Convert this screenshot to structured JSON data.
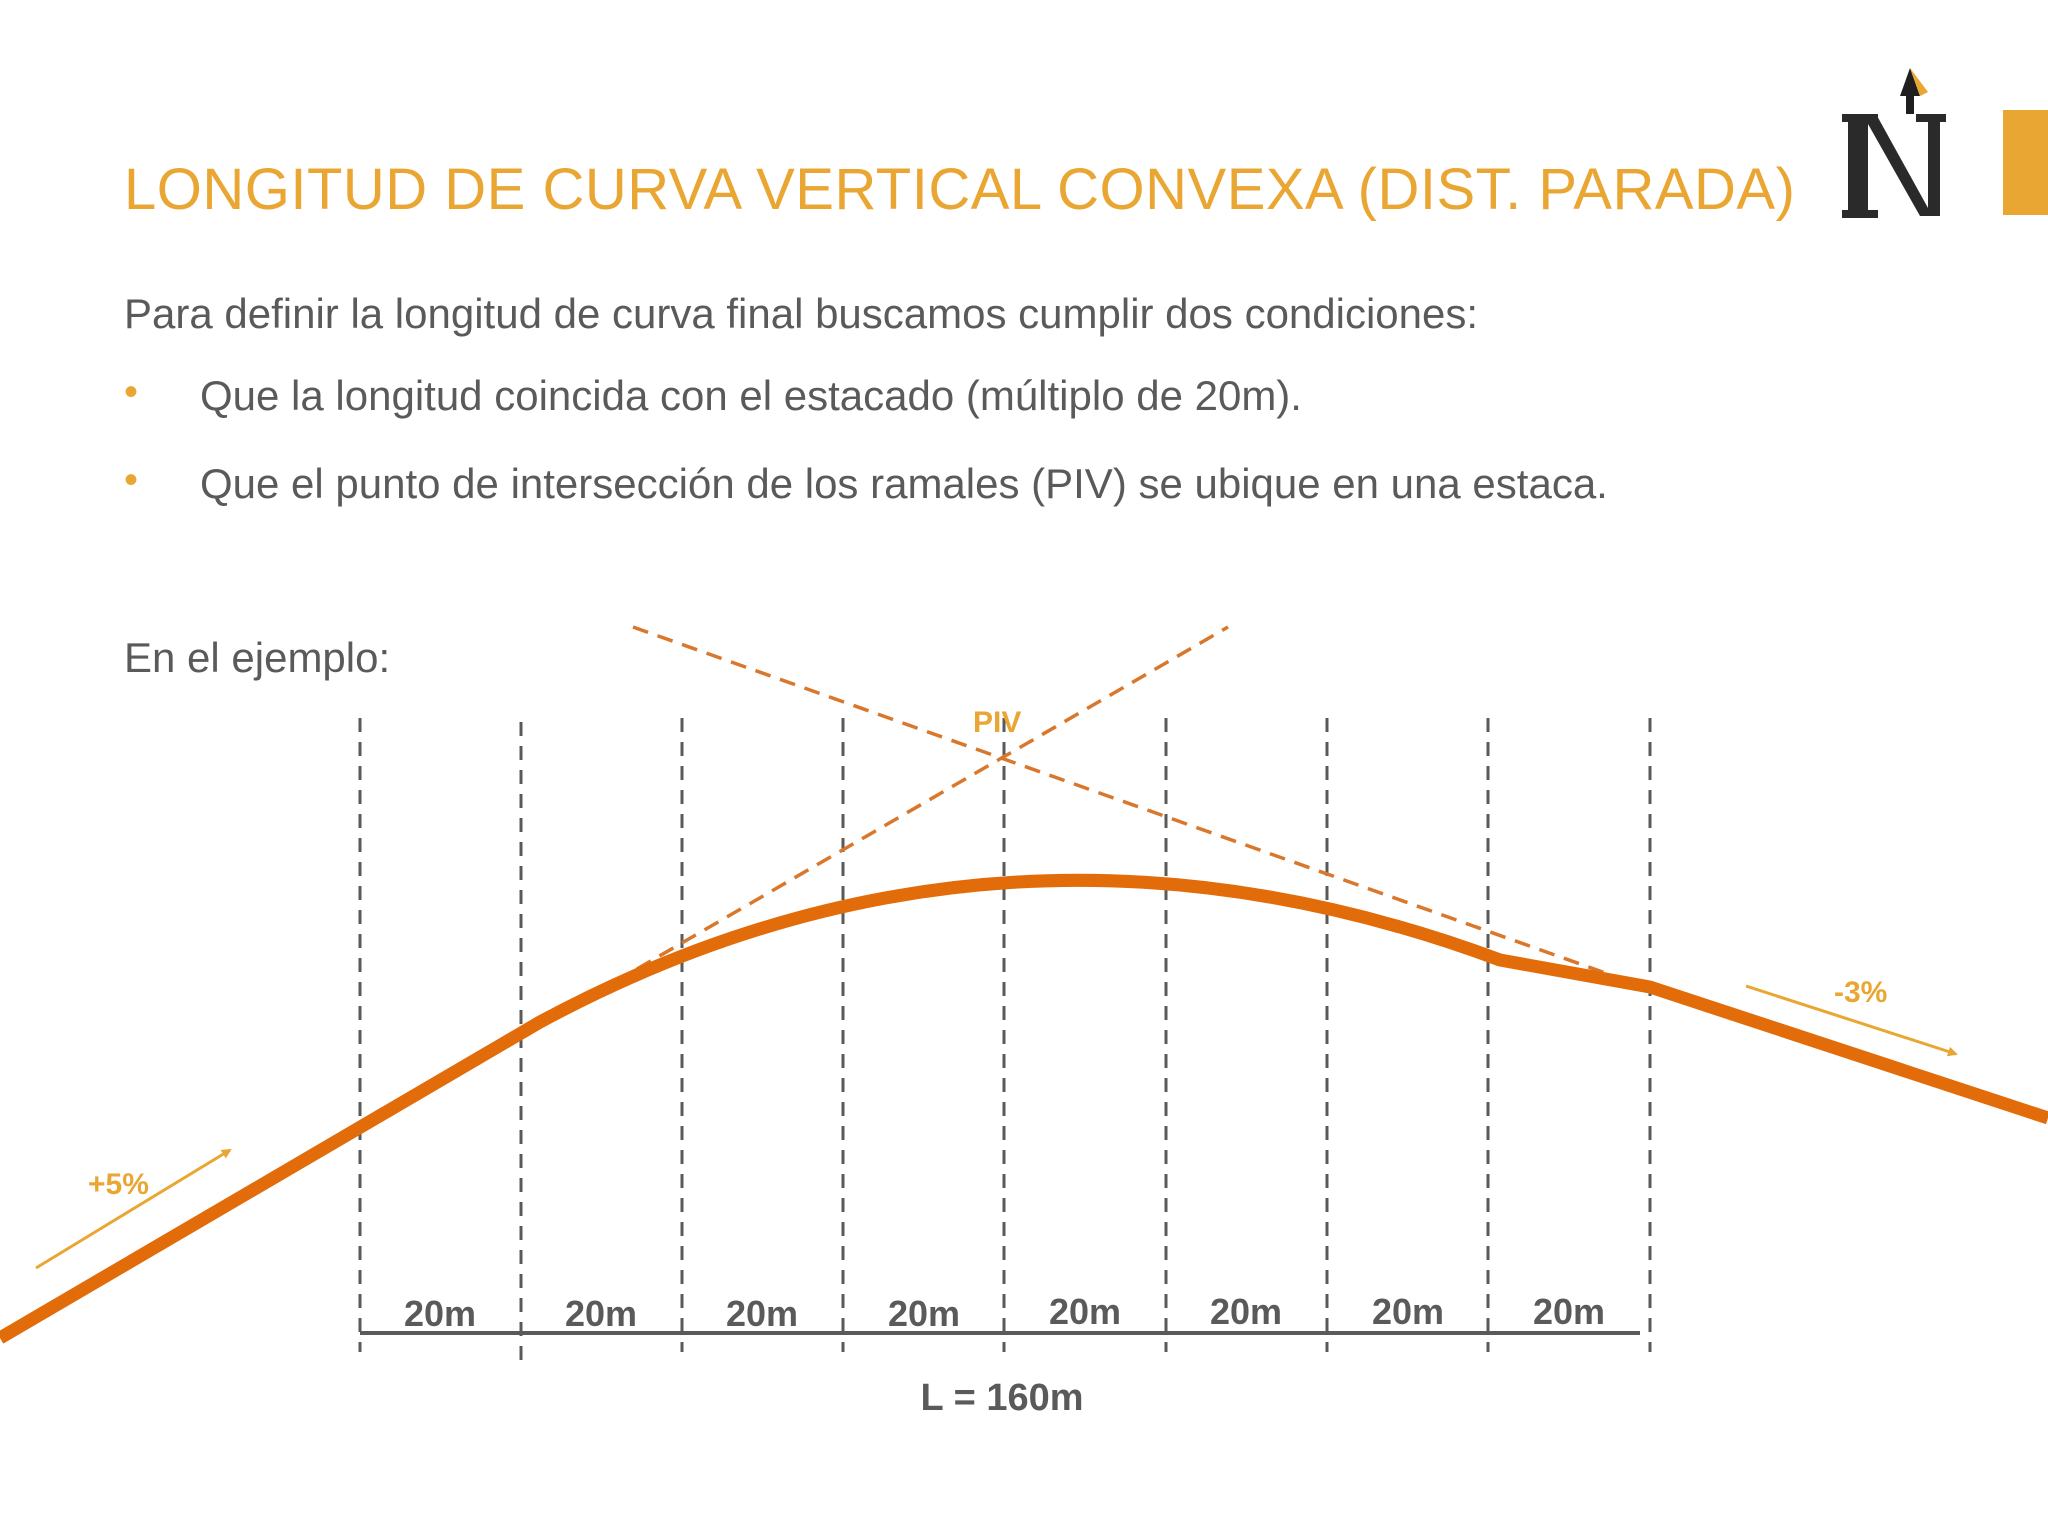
{
  "slide": {
    "title": "LONGITUD DE CURVA VERTICAL CONVEXA (DIST. PARADA)",
    "intro": "Para definir la longitud de curva final buscamos cumplir dos condiciones:",
    "bullets": [
      "Que la longitud coincida con el estacado (múltiplo de 20m).",
      "Que el punto de intersección de los ramales (PIV) se ubique en una estaca."
    ],
    "example_label": "En el ejemplo:"
  },
  "diagram": {
    "piv_label": "PIV",
    "grade_in": "+5%",
    "grade_out": "-3%",
    "segment_labels": [
      "20m",
      "20m",
      "20m",
      "20m",
      "20m",
      "20m",
      "20m",
      "20m"
    ],
    "total_length": "L = 160m"
  },
  "colors": {
    "accent": "#eaa633",
    "curve": "#e36c0a",
    "tangent": "#d9782c",
    "text": "#5a5a5a",
    "station": "#5a5a5a"
  }
}
